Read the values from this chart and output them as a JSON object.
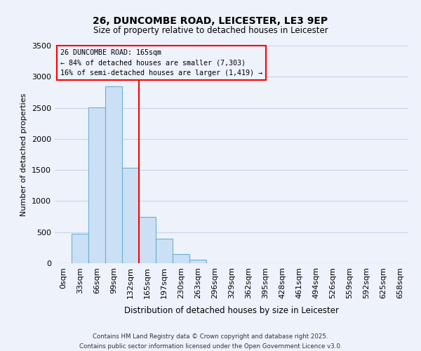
{
  "title1": "26, DUNCOMBE ROAD, LEICESTER, LE3 9EP",
  "title2": "Size of property relative to detached houses in Leicester",
  "xlabel": "Distribution of detached houses by size in Leicester",
  "ylabel": "Number of detached properties",
  "bar_labels": [
    "0sqm",
    "33sqm",
    "66sqm",
    "99sqm",
    "132sqm",
    "165sqm",
    "197sqm",
    "230sqm",
    "263sqm",
    "296sqm",
    "329sqm",
    "362sqm",
    "395sqm",
    "428sqm",
    "461sqm",
    "494sqm",
    "526sqm",
    "559sqm",
    "592sqm",
    "625sqm",
    "658sqm"
  ],
  "bar_values": [
    0,
    470,
    2510,
    2840,
    1540,
    740,
    390,
    145,
    60,
    0,
    0,
    0,
    0,
    0,
    0,
    0,
    0,
    0,
    0,
    0,
    0
  ],
  "bar_color": "#cce0f5",
  "bar_edge_color": "#6aaed6",
  "vline_x": 5,
  "vline_color": "red",
  "ylim": [
    0,
    3500
  ],
  "yticks": [
    0,
    500,
    1000,
    1500,
    2000,
    2500,
    3000,
    3500
  ],
  "annotation_title": "26 DUNCOMBE ROAD: 165sqm",
  "annotation_line1": "← 84% of detached houses are smaller (7,303)",
  "annotation_line2": "16% of semi-detached houses are larger (1,419) →",
  "footnote1": "Contains HM Land Registry data © Crown copyright and database right 2025.",
  "footnote2": "Contains public sector information licensed under the Open Government Licence v3.0.",
  "bg_color": "#eef2fb",
  "grid_color": "#c8d4e8"
}
